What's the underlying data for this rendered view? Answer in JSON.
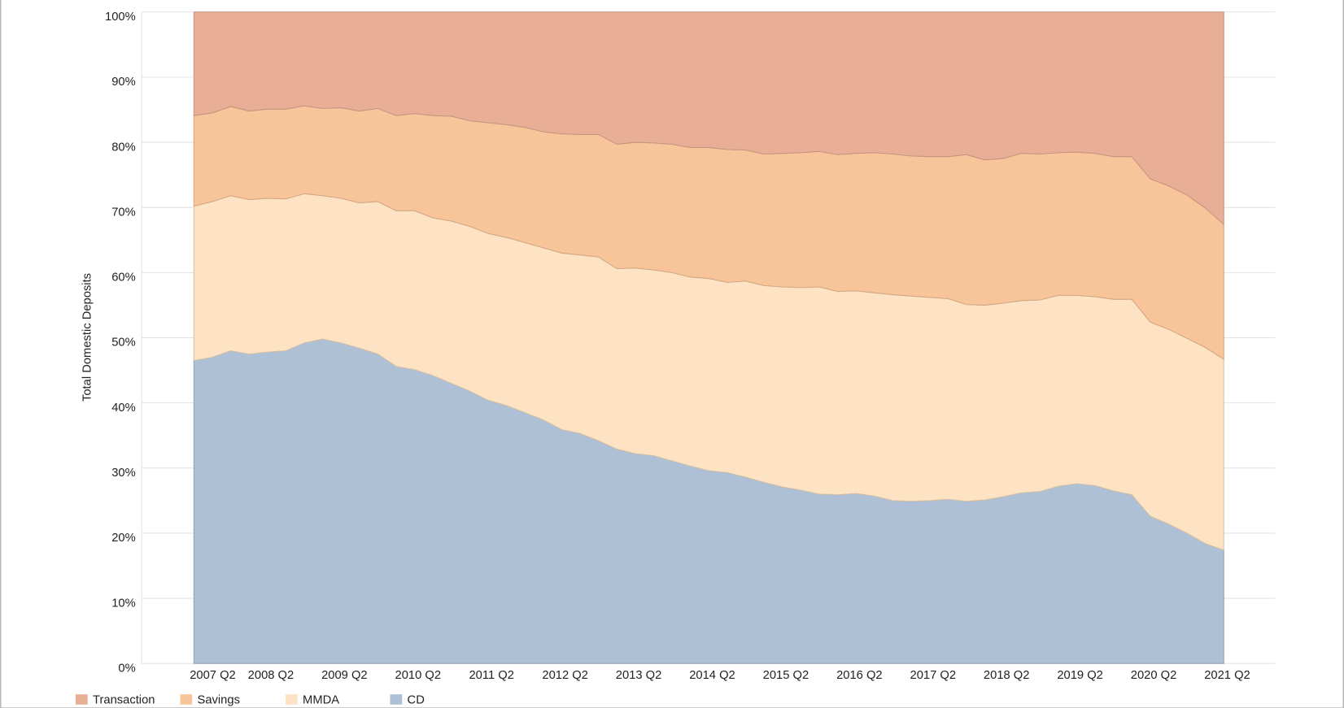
{
  "chart_data": {
    "type": "stacked_area",
    "y_label": "Total Domestic Deposits",
    "categories": [
      "2007 Q2",
      null,
      null,
      null,
      "2008 Q2",
      null,
      null,
      null,
      "2009 Q2",
      null,
      null,
      null,
      "2010 Q2",
      null,
      null,
      null,
      "2011 Q2",
      null,
      null,
      null,
      "2012 Q2",
      null,
      null,
      null,
      "2013 Q2",
      null,
      null,
      null,
      "2014 Q2",
      null,
      null,
      null,
      "2015 Q2",
      null,
      null,
      null,
      "2016 Q2",
      null,
      null,
      null,
      "2017 Q2",
      null,
      null,
      null,
      "2018 Q2",
      null,
      null,
      null,
      "2019 Q2",
      null,
      null,
      null,
      "2020 Q2",
      null,
      null,
      null,
      "2021 Q2"
    ],
    "series": [
      {
        "name": "CD",
        "color": "#adc0d6",
        "values": [
          46.5,
          47.0,
          48.0,
          47.5,
          47.8,
          48.0,
          49.2,
          49.8,
          49.2,
          48.4,
          47.5,
          45.6,
          45.1,
          44.2,
          43.0,
          41.8,
          40.4,
          39.6,
          38.5,
          37.4,
          35.9,
          35.3,
          34.2,
          32.9,
          32.2,
          31.9,
          31.1,
          30.3,
          29.6,
          29.3,
          28.6,
          27.8,
          27.1,
          26.6,
          26.0,
          25.9,
          26.1,
          25.7,
          25.0,
          24.9,
          25.0,
          25.2,
          24.9,
          25.1,
          25.6,
          26.2,
          26.4,
          27.2,
          27.6,
          27.3,
          26.5,
          25.9,
          22.6,
          21.4,
          20.0,
          18.4,
          17.4
        ]
      },
      {
        "name": "MMDA",
        "color": "#fde3c4",
        "values": [
          23.7,
          23.9,
          23.8,
          23.7,
          23.6,
          23.3,
          22.9,
          22.0,
          22.2,
          22.3,
          23.4,
          23.9,
          24.4,
          24.2,
          24.9,
          25.3,
          25.6,
          25.8,
          26.1,
          26.4,
          27.1,
          27.4,
          28.2,
          27.7,
          28.5,
          28.5,
          28.9,
          29.0,
          29.5,
          29.2,
          30.1,
          30.2,
          30.7,
          31.1,
          31.8,
          31.2,
          31.1,
          31.2,
          31.6,
          31.5,
          31.2,
          30.8,
          30.2,
          29.9,
          29.7,
          29.5,
          29.4,
          29.3,
          28.9,
          29.0,
          29.4,
          30.0,
          29.8,
          29.9,
          29.9,
          30.1,
          29.3
        ]
      },
      {
        "name": "Savings",
        "color": "#f8c59a",
        "values": [
          13.9,
          13.6,
          13.7,
          13.6,
          13.7,
          13.8,
          13.5,
          13.4,
          13.9,
          14.1,
          14.3,
          14.6,
          14.9,
          15.7,
          16.1,
          16.2,
          17.0,
          17.3,
          17.7,
          17.8,
          18.3,
          18.5,
          18.8,
          19.1,
          19.3,
          19.5,
          19.7,
          19.9,
          20.1,
          20.4,
          20.1,
          20.2,
          20.5,
          20.7,
          20.8,
          21.0,
          21.1,
          21.5,
          21.6,
          21.5,
          21.6,
          21.8,
          23.0,
          22.3,
          22.2,
          22.6,
          22.4,
          21.9,
          22.0,
          22.0,
          21.9,
          21.9,
          22.0,
          22.0,
          22.0,
          21.4,
          20.7
        ]
      },
      {
        "name": "Transaction",
        "color": "#e8af96",
        "values": [
          15.9,
          15.5,
          14.5,
          15.2,
          14.9,
          14.9,
          14.4,
          14.8,
          14.7,
          15.2,
          14.8,
          15.9,
          15.6,
          15.9,
          16.0,
          16.7,
          17.0,
          17.3,
          17.7,
          18.4,
          18.7,
          18.8,
          18.8,
          20.3,
          20.0,
          20.1,
          20.3,
          20.8,
          20.8,
          21.1,
          21.2,
          21.8,
          21.7,
          21.6,
          21.4,
          21.9,
          21.7,
          21.6,
          21.8,
          22.1,
          22.2,
          22.2,
          21.9,
          22.7,
          22.5,
          21.7,
          21.8,
          21.6,
          21.5,
          21.7,
          22.2,
          22.2,
          25.6,
          26.7,
          28.1,
          30.1,
          32.6
        ]
      }
    ],
    "legend_order": [
      "Transaction",
      "Savings",
      "MMDA",
      "CD"
    ],
    "ylim": [
      0,
      100
    ],
    "yticks": [
      {
        "value": 0,
        "label": "0%"
      },
      {
        "value": 10,
        "label": "10%"
      },
      {
        "value": 20,
        "label": "20%"
      },
      {
        "value": 30,
        "label": "30%"
      },
      {
        "value": 40,
        "label": "40%"
      },
      {
        "value": 50,
        "label": "50%"
      },
      {
        "value": 60,
        "label": "60%"
      },
      {
        "value": 70,
        "label": "70%"
      },
      {
        "value": 80,
        "label": "80%"
      },
      {
        "value": 90,
        "label": "90%"
      },
      {
        "value": 100,
        "label": "100%"
      }
    ],
    "grid": true,
    "legend": "bottom-left"
  }
}
